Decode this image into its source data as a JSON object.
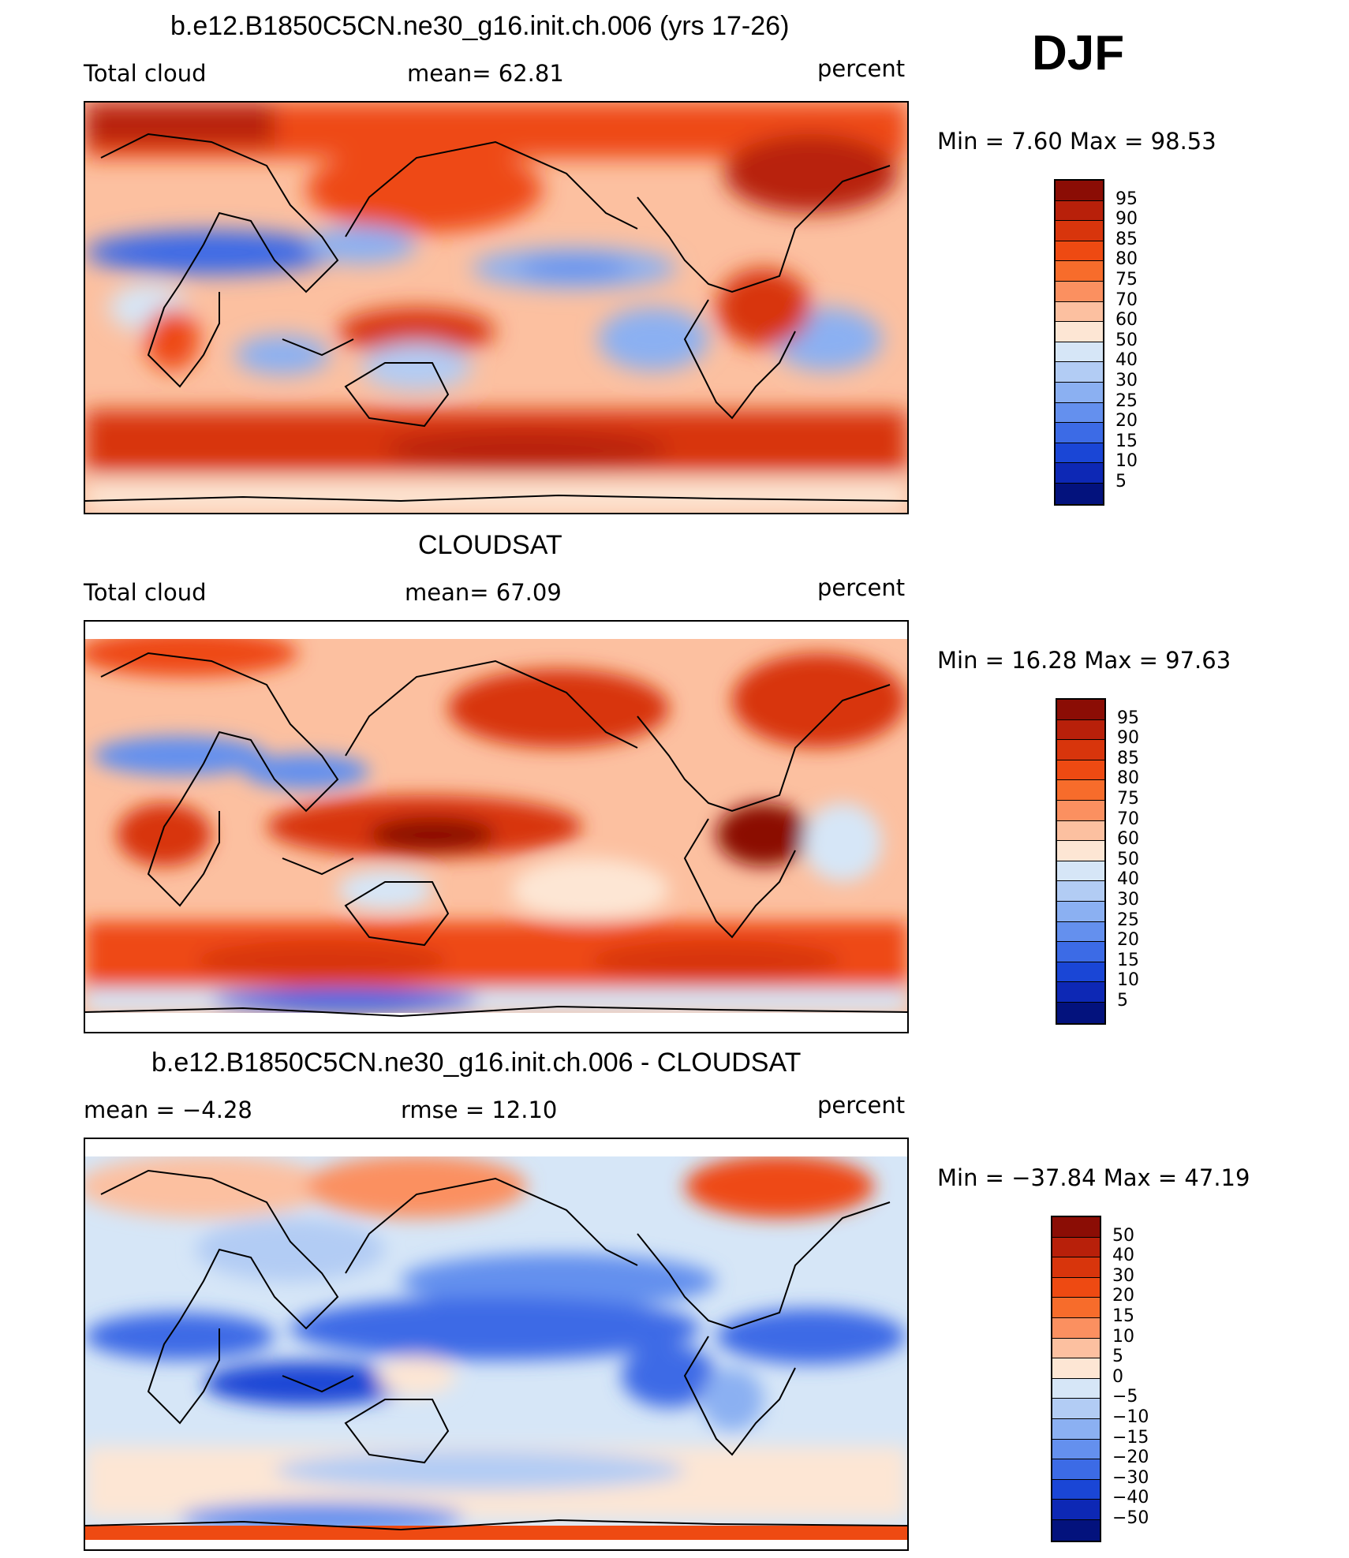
{
  "season": "DJF",
  "chart_data": [
    {
      "type": "heatmap",
      "title": "b.e12.B1850C5CN.ne30_g16.init.ch.006 (yrs 17-26)",
      "left_label": "Total cloud",
      "center_label": "mean=   62.81",
      "right_label": "percent",
      "minmax_label": "Min =    7.60 Max =   98.53",
      "min": 7.6,
      "max": 98.53,
      "mean": 62.81,
      "levels": [
        "95",
        "90",
        "85",
        "80",
        "75",
        "70",
        "60",
        "50",
        "40",
        "30",
        "25",
        "20",
        "15",
        "10",
        "5"
      ],
      "colors": [
        "#8b0d05",
        "#b8200a",
        "#d8350c",
        "#ee4a12",
        "#f76c2b",
        "#fb9060",
        "#fcc0a0",
        "#fde6d4",
        "#d6e6f7",
        "#b2ccf4",
        "#8bb0f2",
        "#6490ee",
        "#3c6be6",
        "#1a46d6",
        "#0d28b5",
        "#03127d"
      ]
    },
    {
      "type": "heatmap",
      "title": "CLOUDSAT",
      "left_label": "Total cloud",
      "center_label": "mean=   67.09",
      "right_label": "percent",
      "minmax_label": "Min =   16.28 Max =   97.63",
      "min": 16.28,
      "max": 97.63,
      "mean": 67.09,
      "levels": [
        "95",
        "90",
        "85",
        "80",
        "75",
        "70",
        "60",
        "50",
        "40",
        "30",
        "25",
        "20",
        "15",
        "10",
        "5"
      ],
      "colors": [
        "#8b0d05",
        "#b8200a",
        "#d8350c",
        "#ee4a12",
        "#f76c2b",
        "#fb9060",
        "#fcc0a0",
        "#fde6d4",
        "#d6e6f7",
        "#b2ccf4",
        "#8bb0f2",
        "#6490ee",
        "#3c6be6",
        "#1a46d6",
        "#0d28b5",
        "#03127d"
      ]
    },
    {
      "type": "heatmap",
      "title": "b.e12.B1850C5CN.ne30_g16.init.ch.006 - CLOUDSAT",
      "left_label": "mean =   −4.28",
      "center_label": "rmse =   12.10",
      "right_label": "percent",
      "minmax_label": "Min = −37.84 Max =   47.19",
      "min": -37.84,
      "max": 47.19,
      "mean": -4.28,
      "rmse": 12.1,
      "levels": [
        "50",
        "40",
        "30",
        "20",
        "15",
        "10",
        "5",
        "0",
        "−5",
        "−10",
        "−15",
        "−20",
        "−30",
        "−40",
        "−50"
      ],
      "colors": [
        "#8b0d05",
        "#b8200a",
        "#d8350c",
        "#ee4a12",
        "#f76c2b",
        "#fb9060",
        "#fcc0a0",
        "#fde6d4",
        "#d6e6f7",
        "#b2ccf4",
        "#8bb0f2",
        "#6490ee",
        "#3c6be6",
        "#1a46d6",
        "#0d28b5",
        "#03127d"
      ]
    }
  ]
}
